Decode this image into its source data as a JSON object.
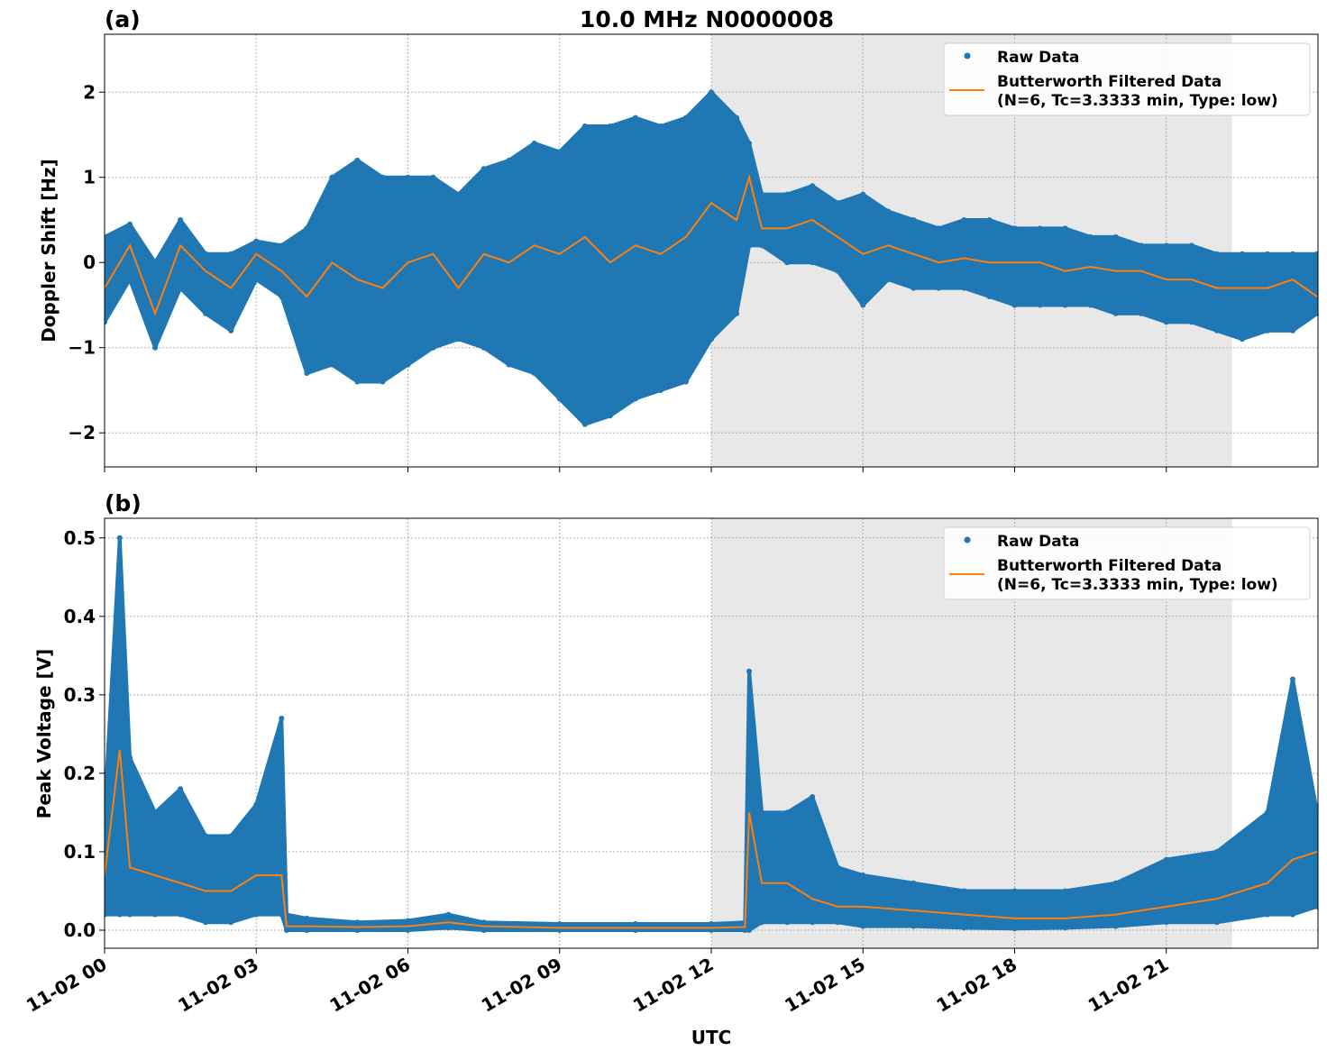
{
  "title": "10.0 MHz N0000008",
  "colors": {
    "raw": "#1f77b4",
    "filtered": "#ff7f0e",
    "night_shading": "#e8e8e8"
  },
  "chart_data": [
    {
      "type": "scatter",
      "panel_label": "(a)",
      "ylabel": "Doppler Shift [Hz]",
      "xlabel": "",
      "ylim": [
        -2.4,
        2.68
      ],
      "yticks": [
        -2,
        -1,
        0,
        1,
        2
      ],
      "ytick_labels": [
        "−2",
        "−1",
        "0",
        "1",
        "2"
      ],
      "xlim": [
        "11-02 00:00",
        "11-03 00:00"
      ],
      "grid": true,
      "legend": {
        "placement": "top-right",
        "entries": [
          "Raw Data",
          "Butterworth Filtered Data",
          "(N=6, Tc=3.3333 min, Type: low)"
        ]
      },
      "shaded_region": [
        "11-02 12:00",
        "11-02 22:18"
      ],
      "x": [
        "00:00",
        "00:30",
        "01:00",
        "01:30",
        "02:00",
        "02:30",
        "03:00",
        "03:30",
        "04:00",
        "04:30",
        "05:00",
        "05:30",
        "06:00",
        "06:30",
        "07:00",
        "07:30",
        "08:00",
        "08:30",
        "09:00",
        "09:30",
        "10:00",
        "10:30",
        "11:00",
        "11:30",
        "12:00",
        "12:30",
        "12:45",
        "13:00",
        "13:30",
        "14:00",
        "14:30",
        "15:00",
        "15:30",
        "16:00",
        "16:30",
        "17:00",
        "17:30",
        "18:00",
        "18:30",
        "19:00",
        "19:30",
        "20:00",
        "20:30",
        "21:00",
        "21:30",
        "22:00",
        "22:30",
        "23:00",
        "23:30",
        "23:59"
      ],
      "series": [
        {
          "name": "Raw Data",
          "kind": "envelope",
          "low": [
            -0.7,
            -0.2,
            -1.0,
            -0.3,
            -0.6,
            -0.8,
            -0.2,
            -0.4,
            -1.3,
            -1.2,
            -1.4,
            -1.4,
            -1.2,
            -1.0,
            -0.9,
            -1.0,
            -1.2,
            -1.3,
            -1.6,
            -1.9,
            -1.8,
            -1.6,
            -1.5,
            -1.4,
            -0.9,
            -0.6,
            0.2,
            0.2,
            0.0,
            0.0,
            -0.1,
            -0.5,
            -0.2,
            -0.3,
            -0.3,
            -0.3,
            -0.4,
            -0.5,
            -0.5,
            -0.5,
            -0.5,
            -0.6,
            -0.6,
            -0.7,
            -0.7,
            -0.8,
            -0.9,
            -0.8,
            -0.8,
            -0.6
          ],
          "high": [
            0.3,
            0.45,
            0.0,
            0.5,
            0.1,
            0.1,
            0.25,
            0.2,
            0.4,
            1.0,
            1.2,
            1.0,
            1.0,
            1.0,
            0.8,
            1.1,
            1.2,
            1.4,
            1.3,
            1.6,
            1.6,
            1.7,
            1.6,
            1.7,
            2.0,
            1.7,
            1.4,
            0.8,
            0.8,
            0.9,
            0.7,
            0.8,
            0.6,
            0.5,
            0.4,
            0.5,
            0.5,
            0.4,
            0.4,
            0.4,
            0.3,
            0.3,
            0.2,
            0.2,
            0.2,
            0.1,
            0.1,
            0.1,
            0.1,
            0.1
          ]
        },
        {
          "name": "Butterworth Filtered Data",
          "kind": "line",
          "values": [
            -0.3,
            0.2,
            -0.6,
            0.2,
            -0.1,
            -0.3,
            0.1,
            -0.1,
            -0.4,
            0.0,
            -0.2,
            -0.3,
            0.0,
            0.1,
            -0.3,
            0.1,
            0.0,
            0.2,
            0.1,
            0.3,
            0.0,
            0.2,
            0.1,
            0.3,
            0.7,
            0.5,
            1.0,
            0.4,
            0.4,
            0.5,
            0.3,
            0.1,
            0.2,
            0.1,
            0.0,
            0.05,
            0.0,
            0.0,
            0.0,
            -0.1,
            -0.05,
            -0.1,
            -0.1,
            -0.2,
            -0.2,
            -0.3,
            -0.3,
            -0.3,
            -0.2,
            -0.4
          ]
        }
      ]
    },
    {
      "type": "scatter",
      "panel_label": "(b)",
      "ylabel": "Peak Voltage [V]",
      "xlabel": "UTC",
      "ylim": [
        -0.023,
        0.525
      ],
      "yticks": [
        0.0,
        0.1,
        0.2,
        0.3,
        0.4,
        0.5
      ],
      "ytick_labels": [
        "0.0",
        "0.1",
        "0.2",
        "0.3",
        "0.4",
        "0.5"
      ],
      "xlim": [
        "11-02 00:00",
        "11-03 00:00"
      ],
      "xtick_labels": [
        "11-02 00",
        "11-02 03",
        "11-02 06",
        "11-02 09",
        "11-02 12",
        "11-02 15",
        "11-02 18",
        "11-02 21"
      ],
      "grid": true,
      "legend": {
        "placement": "top-right",
        "entries": [
          "Raw Data",
          "Butterworth Filtered Data",
          "(N=6, Tc=3.3333 min, Type: low)"
        ]
      },
      "shaded_region": [
        "11-02 12:00",
        "11-02 22:18"
      ],
      "x": [
        "00:00",
        "00:18",
        "00:30",
        "01:00",
        "01:30",
        "02:00",
        "02:30",
        "03:00",
        "03:30",
        "03:36",
        "04:00",
        "05:00",
        "06:00",
        "06:48",
        "07:30",
        "09:00",
        "10:30",
        "12:00",
        "12:40",
        "12:45",
        "13:00",
        "13:30",
        "14:00",
        "14:30",
        "15:00",
        "16:00",
        "17:00",
        "18:00",
        "19:00",
        "20:00",
        "21:00",
        "22:00",
        "23:00",
        "23:30",
        "23:59"
      ],
      "series": [
        {
          "name": "Raw Data",
          "kind": "envelope",
          "low": [
            0.02,
            0.02,
            0.02,
            0.02,
            0.02,
            0.01,
            0.01,
            0.02,
            0.02,
            0.0,
            0.0,
            0.0,
            0.0,
            0.003,
            0.0,
            0.0,
            0.0,
            0.0,
            0.0,
            0.0,
            0.01,
            0.01,
            0.01,
            0.01,
            0.005,
            0.005,
            0.003,
            0.002,
            0.003,
            0.005,
            0.01,
            0.01,
            0.02,
            0.02,
            0.03
          ],
          "high": [
            0.15,
            0.5,
            0.22,
            0.15,
            0.18,
            0.12,
            0.12,
            0.16,
            0.27,
            0.02,
            0.015,
            0.01,
            0.012,
            0.02,
            0.01,
            0.008,
            0.008,
            0.008,
            0.01,
            0.33,
            0.15,
            0.15,
            0.17,
            0.08,
            0.07,
            0.06,
            0.05,
            0.05,
            0.05,
            0.06,
            0.09,
            0.1,
            0.15,
            0.32,
            0.15
          ]
        },
        {
          "name": "Butterworth Filtered Data",
          "kind": "line",
          "values": [
            0.07,
            0.23,
            0.08,
            0.07,
            0.06,
            0.05,
            0.05,
            0.07,
            0.07,
            0.005,
            0.005,
            0.004,
            0.005,
            0.01,
            0.005,
            0.003,
            0.003,
            0.003,
            0.004,
            0.15,
            0.06,
            0.06,
            0.04,
            0.03,
            0.03,
            0.025,
            0.02,
            0.015,
            0.015,
            0.02,
            0.03,
            0.04,
            0.06,
            0.09,
            0.1
          ]
        }
      ]
    }
  ]
}
